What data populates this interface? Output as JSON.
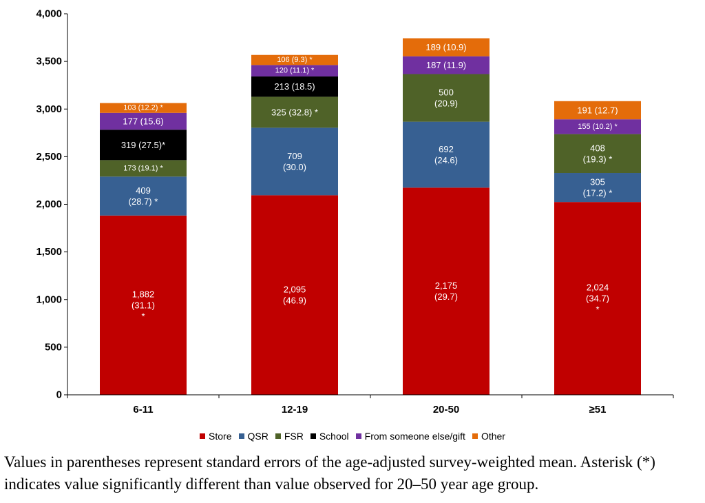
{
  "chart_data": {
    "type": "bar",
    "stacked": true,
    "categories": [
      "6-11",
      "12-19",
      "20-50",
      "≥51"
    ],
    "ylim": [
      0,
      4000
    ],
    "yticks": [
      0,
      500,
      1000,
      1500,
      2000,
      2500,
      3000,
      3500,
      4000
    ],
    "ytick_labels": [
      "0",
      "500",
      "1,000",
      "1,500",
      "2,000",
      "2,500",
      "3,000",
      "3,500",
      "4,000"
    ],
    "grid": false,
    "legend_position": "bottom",
    "series": [
      {
        "name": "Store",
        "color": "#c00000",
        "values": [
          1882,
          2095,
          2175,
          2024
        ],
        "labels": [
          [
            "1,882",
            "(31.1)",
            "*"
          ],
          [
            "2,095",
            "(46.9)"
          ],
          [
            "2,175",
            "(29.7)"
          ],
          [
            "2,024",
            "(34.7)",
            "*"
          ]
        ]
      },
      {
        "name": "QSR",
        "color": "#376092",
        "values": [
          409,
          709,
          692,
          305
        ],
        "labels": [
          [
            "409",
            "(28.7) *"
          ],
          [
            "709",
            "(30.0)"
          ],
          [
            "692",
            "(24.6)"
          ],
          [
            "305",
            "(17.2) *"
          ]
        ]
      },
      {
        "name": "FSR",
        "color": "#4f6228",
        "values": [
          173,
          325,
          500,
          408
        ],
        "labels": [
          [
            "173 (19.1) *"
          ],
          [
            "325 (32.8) *"
          ],
          [
            "500",
            "(20.9)"
          ],
          [
            "408",
            "(19.3) *"
          ]
        ]
      },
      {
        "name": "School",
        "color": "#000000",
        "values": [
          319,
          213,
          0,
          0
        ],
        "labels": [
          [
            "319 (27.5)*"
          ],
          [
            "213 (18.5)"
          ],
          [],
          []
        ]
      },
      {
        "name": "From someone else/gift",
        "color": "#7030a0",
        "values": [
          177,
          120,
          187,
          155
        ],
        "labels": [
          [
            "177 (15.6)"
          ],
          [
            "120 (11.1) *"
          ],
          [
            "187 (11.9)"
          ],
          [
            "155 (10.2) *"
          ]
        ]
      },
      {
        "name": "Other",
        "color": "#e46c0a",
        "values": [
          103,
          106,
          189,
          191
        ],
        "labels": [
          [
            "103 (12.2) *"
          ],
          [
            "106 (9.3) *"
          ],
          [
            "189 (10.9)"
          ],
          [
            "191 (12.7)"
          ]
        ]
      }
    ]
  },
  "footnote": "Values in parentheses represent standard errors of the age-adjusted survey-weighted mean. Asterisk (*) indicates value significantly different than value observed for 20–50 year age group."
}
